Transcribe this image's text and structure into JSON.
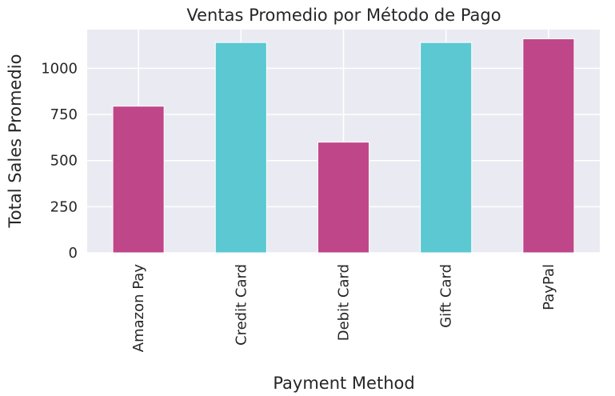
{
  "chart_data": {
    "type": "bar",
    "title": "Ventas Promedio por Método de Pago",
    "xlabel": "Payment Method",
    "ylabel": "Total Sales Promedio",
    "categories": [
      "Amazon Pay",
      "Credit Card",
      "Debit Card",
      "Gift Card",
      "PayPal"
    ],
    "values": [
      795,
      1140,
      600,
      1140,
      1160
    ],
    "bar_colors": [
      "#c0468a",
      "#5bc8d2",
      "#c0468a",
      "#5bc8d2",
      "#c0468a"
    ],
    "ylim": [
      0,
      1210
    ],
    "yticks": [
      0,
      250,
      500,
      750,
      1000
    ],
    "grid": true,
    "legend": "none"
  },
  "colors": {
    "plot_background": "#eaeaf2",
    "grid": "#ffffff",
    "text": "#262626"
  }
}
